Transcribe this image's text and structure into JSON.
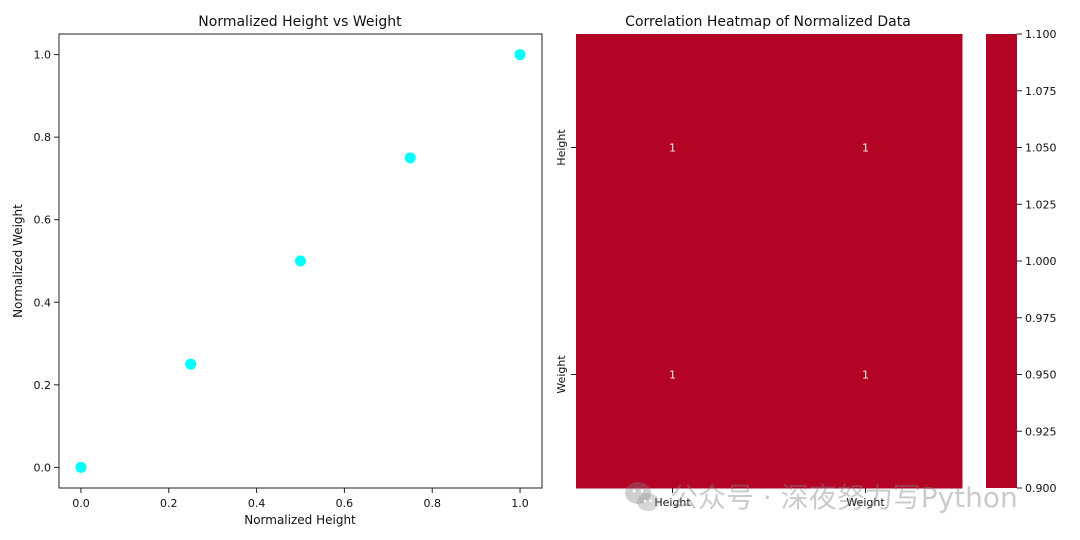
{
  "chart_data": [
    {
      "type": "scatter",
      "title": "Normalized Height vs Weight",
      "xlabel": "Normalized Height",
      "ylabel": "Normalized Weight",
      "x": [
        0.0,
        0.25,
        0.5,
        0.75,
        1.0
      ],
      "y": [
        0.0,
        0.25,
        0.5,
        0.75,
        1.0
      ],
      "xlim": [
        -0.05,
        1.05
      ],
      "ylim": [
        -0.05,
        1.05
      ],
      "xticks": [
        "0.0",
        "0.2",
        "0.4",
        "0.6",
        "0.8",
        "1.0"
      ],
      "yticks": [
        "0.0",
        "0.2",
        "0.4",
        "0.6",
        "0.8",
        "1.0"
      ],
      "marker_color": "#00ffff",
      "grid": false
    },
    {
      "type": "heatmap",
      "title": "Correlation Heatmap of Normalized Data",
      "rows": [
        "Height",
        "Weight"
      ],
      "columns": [
        "Height",
        "Weight"
      ],
      "values": [
        [
          1,
          1
        ],
        [
          1,
          1
        ]
      ],
      "cell_labels": [
        [
          "1",
          "1"
        ],
        [
          "1",
          "1"
        ]
      ],
      "cell_color": "#b40426",
      "colorbar": {
        "min": 0.9,
        "max": 1.1,
        "ticks": [
          "0.900",
          "0.925",
          "0.950",
          "0.975",
          "1.000",
          "1.025",
          "1.050",
          "1.075",
          "1.100"
        ]
      }
    }
  ],
  "watermark": {
    "text": "公众号 · 深夜努力写Python"
  }
}
